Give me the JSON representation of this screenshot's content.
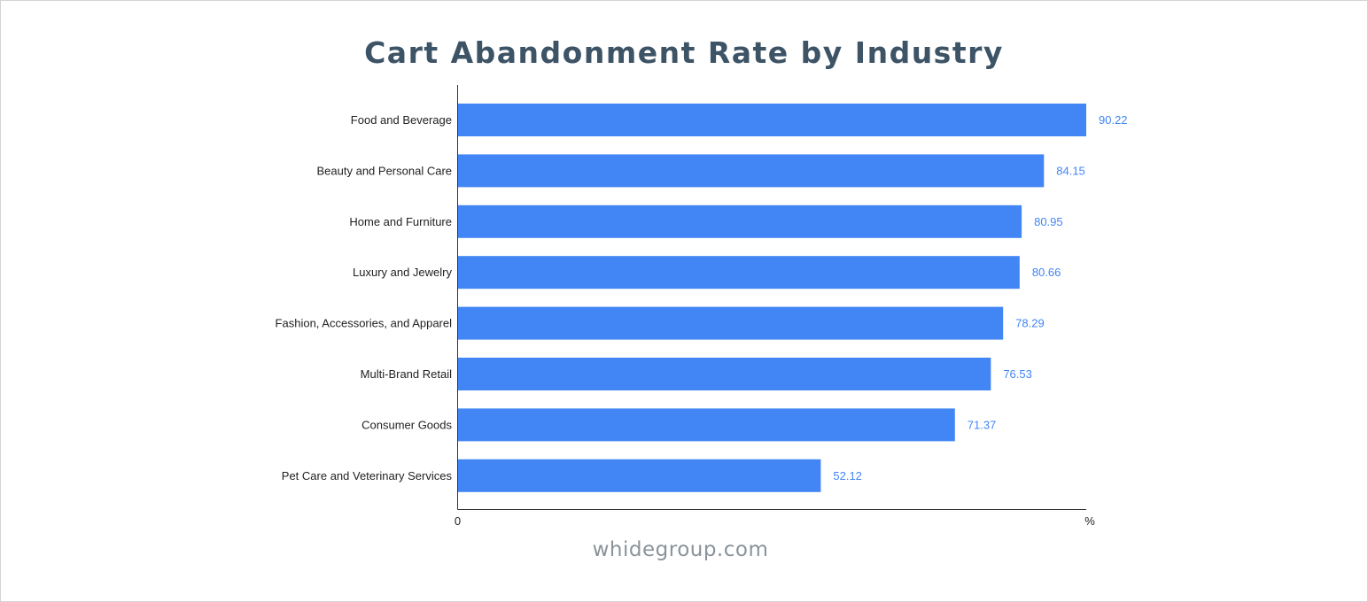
{
  "chart_data": {
    "type": "bar",
    "orientation": "horizontal",
    "title": "Cart Abandonment Rate by Industry",
    "categories": [
      "Food and Beverage",
      "Beauty and Personal Care",
      "Home and Furniture",
      "Luxury and Jewelry",
      "Fashion, Accessories, and Apparel",
      "Multi-Brand Retail",
      "Consumer Goods",
      "Pet Care and Veterinary Services"
    ],
    "values": [
      90.22,
      84.15,
      80.95,
      80.66,
      78.29,
      76.53,
      71.37,
      52.12
    ],
    "xlim": [
      0,
      90.22
    ],
    "x_tick_labels": [
      "0",
      "%"
    ],
    "grid": false,
    "legend": "none",
    "bar_color": "#4285f4",
    "value_label_color": "#4285f4"
  },
  "title_color": "#3d5366",
  "watermark": "whidegroup.com"
}
